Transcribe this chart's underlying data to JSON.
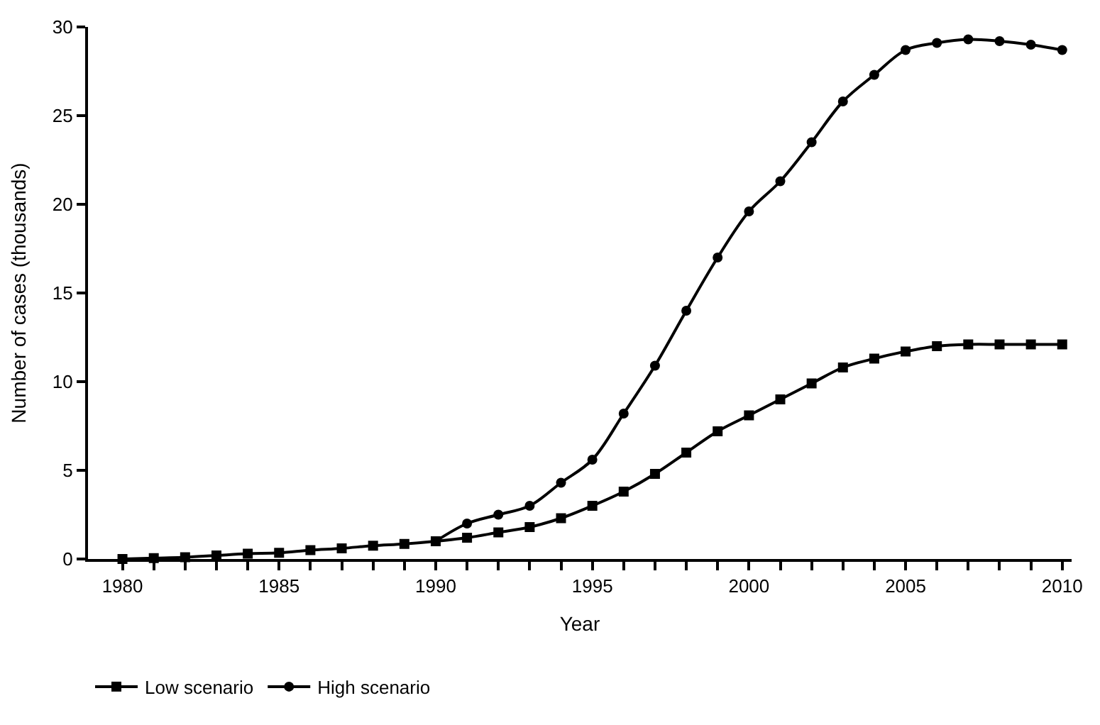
{
  "chart_data": {
    "type": "line",
    "xlabel": "Year",
    "ylabel": "Number of cases (thousands)",
    "xlim": [
      1978.9,
      2010.3
    ],
    "ylim": [
      0,
      30
    ],
    "xticks": [
      1980,
      {
        "value": 1981,
        "label": null
      },
      {
        "value": 1982,
        "label": null
      },
      {
        "value": 1983,
        "label": null
      },
      {
        "value": 1984,
        "label": null
      },
      1985,
      {
        "value": 1986,
        "label": null
      },
      {
        "value": 1987,
        "label": null
      },
      {
        "value": 1988,
        "label": null
      },
      {
        "value": 1989,
        "label": null
      },
      1990,
      {
        "value": 1991,
        "label": null
      },
      {
        "value": 1992,
        "label": null
      },
      {
        "value": 1993,
        "label": null
      },
      {
        "value": 1994,
        "label": null
      },
      1995,
      {
        "value": 1996,
        "label": null
      },
      {
        "value": 1997,
        "label": null
      },
      {
        "value": 1998,
        "label": null
      },
      {
        "value": 1999,
        "label": null
      },
      2000,
      {
        "value": 2001,
        "label": null
      },
      {
        "value": 2002,
        "label": null
      },
      {
        "value": 2003,
        "label": null
      },
      {
        "value": 2004,
        "label": null
      },
      2005,
      {
        "value": 2006,
        "label": null
      },
      {
        "value": 2007,
        "label": null
      },
      {
        "value": 2008,
        "label": null
      },
      {
        "value": 2009,
        "label": null
      },
      2010
    ],
    "yticks": [
      0,
      5,
      10,
      15,
      20,
      25,
      30
    ],
    "legend": "bottom left",
    "line_style": "solid",
    "series": [
      {
        "name": "Low scenario",
        "color": "#000000",
        "marker": "square",
        "x": [
          1980,
          1981,
          1982,
          1983,
          1984,
          1985,
          1986,
          1987,
          1988,
          1989,
          1990,
          1991,
          1992,
          1993,
          1994,
          1995,
          1996,
          1997,
          1998,
          1999,
          2000,
          2001,
          2002,
          2003,
          2004,
          2005,
          2006,
          2007,
          2008,
          2009,
          2010
        ],
        "values": [
          0,
          0.05,
          0.1,
          0.2,
          0.3,
          0.35,
          0.5,
          0.6,
          0.75,
          0.85,
          1.0,
          1.2,
          1.5,
          1.8,
          2.3,
          3.0,
          3.8,
          4.8,
          6.0,
          7.2,
          8.1,
          9.0,
          9.9,
          10.8,
          11.3,
          11.7,
          12.0,
          12.1,
          12.1,
          12.1,
          12.1
        ]
      },
      {
        "name": "High scenario",
        "color": "#000000",
        "marker": "circle",
        "x": [
          1990,
          1991,
          1992,
          1993,
          1994,
          1995,
          1996,
          1997,
          1998,
          1999,
          2000,
          2001,
          2002,
          2003,
          2004,
          2005,
          2006,
          2007,
          2008,
          2009,
          2010
        ],
        "values": [
          1.0,
          2.0,
          2.5,
          3.0,
          4.3,
          5.6,
          8.2,
          10.9,
          14.0,
          17.0,
          19.6,
          21.3,
          23.5,
          25.8,
          27.3,
          28.7,
          29.1,
          29.3,
          29.2,
          29.0,
          28.7
        ]
      }
    ]
  }
}
